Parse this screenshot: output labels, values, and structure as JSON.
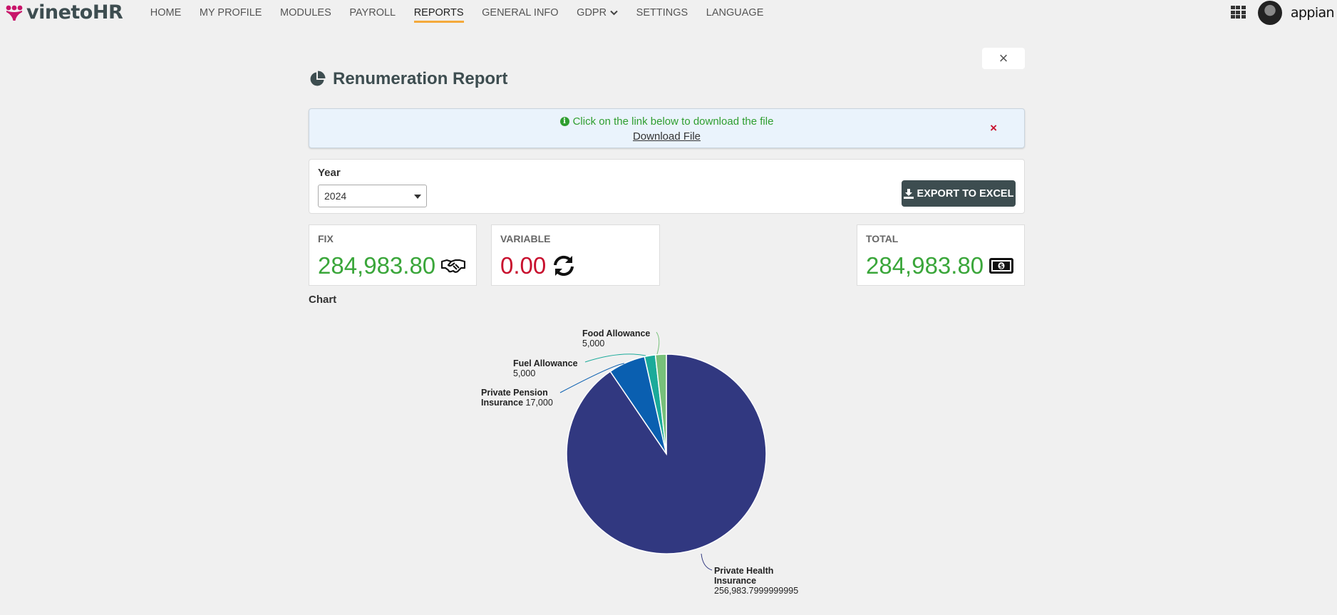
{
  "app": {
    "logo_text": "vinetoHR",
    "brand": "appian"
  },
  "nav": {
    "items": [
      {
        "label": "HOME",
        "active": false
      },
      {
        "label": "MY PROFILE",
        "active": false
      },
      {
        "label": "MODULES",
        "active": false
      },
      {
        "label": "PAYROLL",
        "active": false
      },
      {
        "label": "REPORTS",
        "active": true
      },
      {
        "label": "GENERAL INFO",
        "active": false
      },
      {
        "label": "GDPR",
        "active": false,
        "has_dropdown": true
      },
      {
        "label": "SETTINGS",
        "active": false
      },
      {
        "label": "LANGUAGE",
        "active": false
      }
    ]
  },
  "page": {
    "title": "Renumeration Report",
    "close_label": "×"
  },
  "alert": {
    "message": "Click on the link below to download the file",
    "link": "Download File",
    "close_label": "×"
  },
  "filter": {
    "year_label": "Year",
    "year_value": "2024",
    "export_label": "EXPORT TO EXCEL"
  },
  "kpis": {
    "fix": {
      "label": "FIX",
      "value": "284,983.80",
      "icon": "handshake-icon"
    },
    "variable": {
      "label": "VARIABLE",
      "value": "0.00",
      "icon": "refresh-icon"
    },
    "total": {
      "label": "TOTAL",
      "value": "284,983.80",
      "icon": "money-bill-icon"
    }
  },
  "colors": {
    "accent_nav": "#f4a93b",
    "primary": "#3d4d50",
    "positive": "#3aa63a",
    "negative": "#c8102e"
  },
  "chart_data": {
    "type": "pie",
    "title": "Chart",
    "slices": [
      {
        "label": "Private Health Insurance",
        "value": 256983.7999999995,
        "value_text": "256,983.7999999995",
        "color": "#313880"
      },
      {
        "label": "Private Pension Insurance",
        "value": 17000,
        "value_text": "17,000",
        "color": "#0a5fb0"
      },
      {
        "label": "Fuel Allowance",
        "value": 5000,
        "value_text": "5,000",
        "color": "#1aaa9a"
      },
      {
        "label": "Food Allowance",
        "value": 5000,
        "value_text": "5,000",
        "color": "#77c07a"
      }
    ]
  }
}
